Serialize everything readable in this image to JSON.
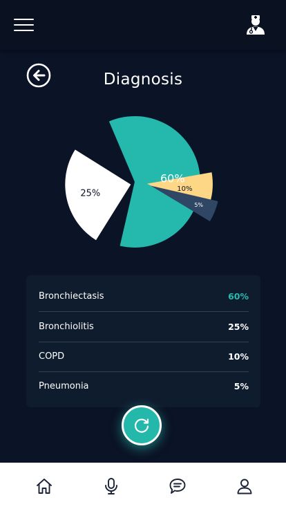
{
  "header": {
    "menu_icon": "hamburger-menu-icon",
    "profile_icon": "doctor-icon"
  },
  "page": {
    "title": "Diagnosis",
    "back_icon": "arrow-left-circle-icon"
  },
  "chart_data": {
    "type": "pie",
    "slices": [
      {
        "label": "Bronchiectasis",
        "value": 60,
        "text": "60%",
        "color": "#24b9ac",
        "label_color": "#ffffff"
      },
      {
        "label": "Bronchiolitis",
        "value": 25,
        "text": "25%",
        "color": "#ffffff",
        "label_color": "#0b1326"
      },
      {
        "label": "COPD",
        "value": 10,
        "text": "10%",
        "color": "#fdd686",
        "label_color": "#0b1326"
      },
      {
        "label": "Pneumonia",
        "value": 5,
        "text": "5%",
        "color": "#2f4765",
        "label_color": "#ffffff"
      }
    ]
  },
  "results": [
    {
      "name": "Bronchiectasis",
      "percent": "60%",
      "accent": true
    },
    {
      "name": "Bronchiolitis",
      "percent": "25%",
      "accent": false
    },
    {
      "name": "COPD",
      "percent": "10%",
      "accent": false
    },
    {
      "name": "Pneumonia",
      "percent": "5%",
      "accent": false
    }
  ],
  "actions": {
    "refresh_icon": "refresh-icon"
  },
  "colors": {
    "background": "#0b1326",
    "accent": "#27bcae",
    "panel": "#0f1c2e"
  },
  "nav": [
    {
      "icon": "home-icon"
    },
    {
      "icon": "microphone-icon"
    },
    {
      "icon": "chat-icon"
    },
    {
      "icon": "user-icon"
    }
  ]
}
